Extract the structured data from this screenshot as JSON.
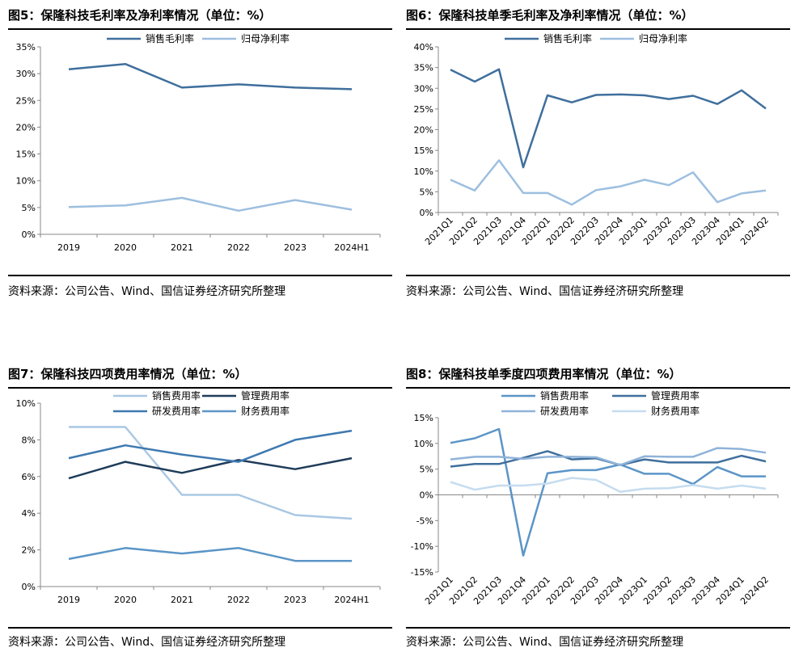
{
  "colors": {
    "dark": "#1f3c5a",
    "mid": "#3f77a6",
    "light": "#a9c8e3",
    "mid2": "#5b95c7",
    "lightest": "#cfe1f0"
  },
  "chart_data": [
    {
      "id": "fig5",
      "type": "line",
      "title": "图5：保隆科技毛利率及净利率情况（单位：%）",
      "source": "资料来源：公司公告、Wind、国信证券经济研究所整理",
      "categories": [
        "2019",
        "2020",
        "2021",
        "2022",
        "2023",
        "2024H1"
      ],
      "ylim": [
        0,
        35
      ],
      "yticks": [
        0,
        5,
        10,
        15,
        20,
        25,
        30,
        35
      ],
      "ytick_labels": [
        "0%",
        "5%",
        "10%",
        "15%",
        "20%",
        "25%",
        "30%",
        "35%"
      ],
      "xlabel": "",
      "ylabel": "",
      "legend": "top",
      "series": [
        {
          "name": "销售毛利率",
          "color": "#3f6f9c",
          "values": [
            30.8,
            31.8,
            27.4,
            28.0,
            27.4,
            27.1
          ]
        },
        {
          "name": "归母净利率",
          "color": "#9dbfdf",
          "values": [
            5.1,
            5.4,
            6.8,
            4.4,
            6.4,
            4.6
          ]
        }
      ]
    },
    {
      "id": "fig6",
      "type": "line",
      "title": "图6：保隆科技单季毛利率及净利率情况（单位：%）",
      "source": "资料来源：公司公告、Wind、国信证券经济研究所整理",
      "categories": [
        "2021Q1",
        "2021Q2",
        "2021Q3",
        "2021Q4",
        "2022Q1",
        "2022Q2",
        "2022Q3",
        "2022Q4",
        "2023Q1",
        "2023Q2",
        "2023Q3",
        "2023Q4",
        "2024Q1",
        "2024Q2"
      ],
      "ylim": [
        0,
        40
      ],
      "yticks": [
        0,
        5,
        10,
        15,
        20,
        25,
        30,
        35,
        40
      ],
      "ytick_labels": [
        "0%",
        "5%",
        "10%",
        "15%",
        "20%",
        "25%",
        "30%",
        "35%",
        "40%"
      ],
      "xlabel": "",
      "ylabel": "",
      "legend": "top",
      "series": [
        {
          "name": "销售毛利率",
          "color": "#3f6f9c",
          "values": [
            34.5,
            31.6,
            34.6,
            10.9,
            28.3,
            26.6,
            28.4,
            28.5,
            28.3,
            27.4,
            28.2,
            26.2,
            29.5,
            25.1
          ]
        },
        {
          "name": "归母净利率",
          "color": "#9dbfdf",
          "values": [
            7.9,
            5.3,
            12.6,
            4.7,
            4.7,
            1.9,
            5.4,
            6.3,
            7.9,
            6.6,
            9.7,
            2.5,
            4.6,
            5.3
          ]
        }
      ]
    },
    {
      "id": "fig7",
      "type": "line",
      "title": "图7：保隆科技四项费用率情况（单位：%）",
      "source": "资料来源：公司公告、Wind、国信证券经济研究所整理",
      "categories": [
        "2019",
        "2020",
        "2021",
        "2022",
        "2023",
        "2024H1"
      ],
      "ylim": [
        0,
        10
      ],
      "yticks": [
        0,
        2,
        4,
        6,
        8,
        10
      ],
      "ytick_labels": [
        "0%",
        "2%",
        "4%",
        "6%",
        "8%",
        "10%"
      ],
      "xlabel": "",
      "ylabel": "",
      "legend": "top",
      "series": [
        {
          "name": "销售费用率",
          "color": "#a9c8e3",
          "values": [
            8.7,
            8.7,
            5.0,
            5.0,
            3.9,
            3.7
          ]
        },
        {
          "name": "管理费用率",
          "color": "#1f3c5a",
          "values": [
            5.9,
            6.8,
            6.2,
            6.9,
            6.4,
            7.0
          ]
        },
        {
          "name": "研发费用率",
          "color": "#3e79b0",
          "values": [
            7.0,
            7.7,
            7.2,
            6.8,
            8.0,
            8.5
          ]
        },
        {
          "name": "财务费用率",
          "color": "#5b95c7",
          "values": [
            1.5,
            2.1,
            1.8,
            2.1,
            1.4,
            1.4
          ]
        }
      ]
    },
    {
      "id": "fig8",
      "type": "line",
      "title": "图8：保隆科技单季度四项费用率情况（单位：%）",
      "source": "资料来源：公司公告、Wind、国信证券经济研究所整理",
      "categories": [
        "2021Q1",
        "2021Q2",
        "2021Q3",
        "2021Q4",
        "2022Q1",
        "2022Q2",
        "2022Q3",
        "2022Q4",
        "2023Q1",
        "2023Q2",
        "2023Q3",
        "2023Q4",
        "2024Q1",
        "2024Q2"
      ],
      "ylim": [
        -15,
        15
      ],
      "yticks": [
        -15,
        -10,
        -5,
        0,
        5,
        10,
        15
      ],
      "ytick_labels": [
        "-15%",
        "-10%",
        "-5%",
        "0%",
        "5%",
        "10%",
        "15%"
      ],
      "xlabel": "",
      "ylabel": "",
      "legend": "top",
      "series": [
        {
          "name": "销售费用率",
          "color": "#5b95c7",
          "values": [
            10.1,
            11.0,
            12.8,
            -11.8,
            4.2,
            4.8,
            4.8,
            5.9,
            4.1,
            4.1,
            2.1,
            5.4,
            3.6,
            3.6
          ]
        },
        {
          "name": "管理费用率",
          "color": "#3f6f9c",
          "values": [
            5.5,
            6.0,
            6.0,
            7.2,
            8.5,
            6.9,
            7.1,
            5.8,
            6.9,
            6.3,
            6.3,
            6.3,
            7.6,
            6.5
          ]
        },
        {
          "name": "研发费用率",
          "color": "#8fb3d9",
          "values": [
            6.9,
            7.4,
            7.4,
            7.0,
            7.4,
            7.4,
            7.3,
            5.8,
            7.5,
            7.4,
            7.4,
            9.1,
            8.9,
            8.2
          ]
        },
        {
          "name": "财务费用率",
          "color": "#c5dcef",
          "values": [
            2.5,
            1.0,
            1.8,
            1.8,
            2.2,
            3.3,
            2.9,
            0.6,
            1.2,
            1.3,
            1.9,
            1.2,
            1.8,
            1.2
          ]
        }
      ]
    }
  ]
}
